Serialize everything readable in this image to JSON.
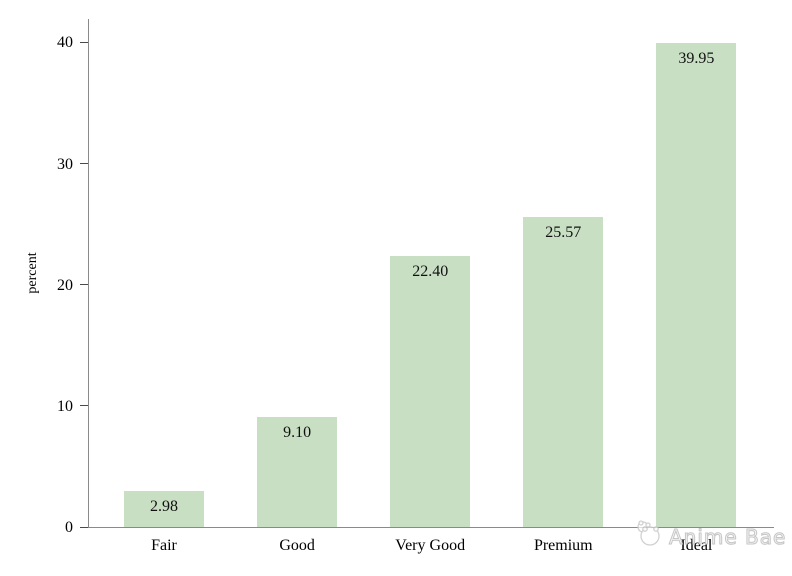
{
  "chart_data": {
    "type": "bar",
    "title": "",
    "categories": [
      "Fair",
      "Good",
      "Very Good",
      "Premium",
      "Ideal"
    ],
    "values": [
      2.98,
      9.1,
      22.4,
      25.57,
      39.95
    ],
    "value_labels": [
      "2.98",
      "9.10",
      "22.40",
      "25.57",
      "39.95"
    ],
    "xlabel": "",
    "ylabel": "percent",
    "yticks": [
      0,
      10,
      20,
      30,
      40
    ],
    "ylim": [
      0,
      42
    ],
    "grid": false,
    "legend": "none",
    "bar_color": "#c8dfc4",
    "axis_color": "#8a8a8a",
    "text_color": "#000000"
  },
  "watermark": {
    "text": "Anime Bae",
    "icon": "panda-icon",
    "color": "#c6c6c6"
  }
}
